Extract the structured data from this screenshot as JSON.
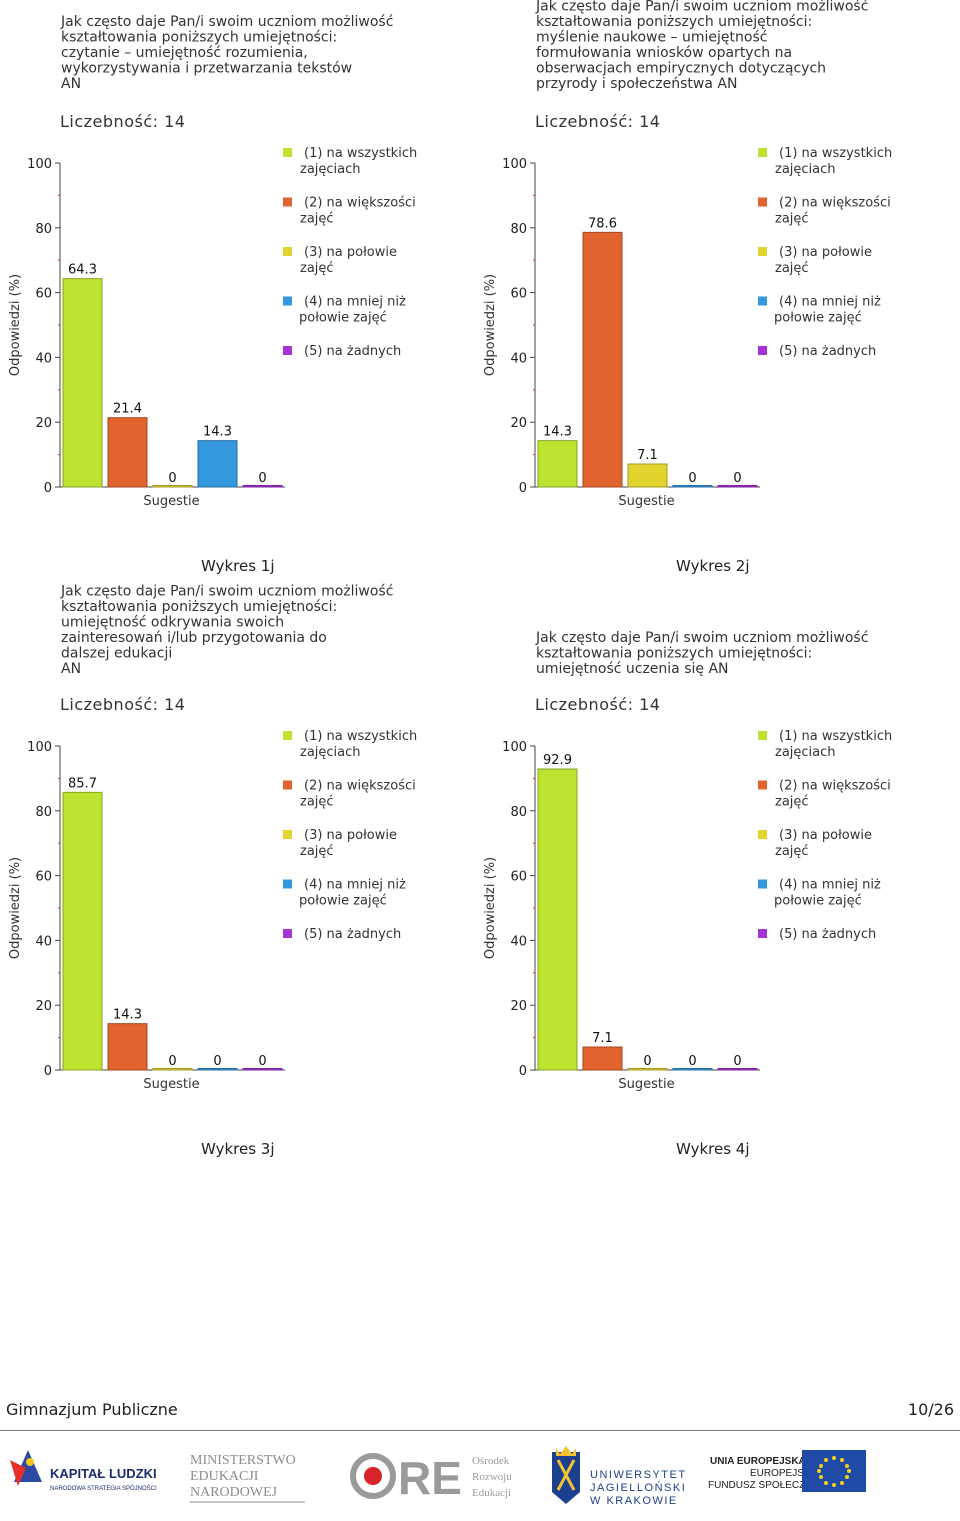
{
  "legend": [
    {
      "lines": [
        "(1) na wszystkich",
        "zajęciach"
      ],
      "color": "#bde22f"
    },
    {
      "lines": [
        "(2) na większości",
        "zajęć"
      ],
      "color": "#e2632e"
    },
    {
      "lines": [
        "(3) na połowie",
        "zajęć"
      ],
      "color": "#e3d32f"
    },
    {
      "lines": [
        "(4) na mniej niż",
        "połowie zajęć"
      ],
      "color": "#3498de"
    },
    {
      "lines": [
        "(5) na żadnych"
      ],
      "color": "#a434d8"
    }
  ],
  "chart_data": [
    {
      "type": "bar",
      "title_lines": [
        "Jak często daje Pan/i swoim uczniom możliwość",
        "kształtowania poniższych umiejętności:",
        "czytanie – umiejętność rozumienia,",
        "wykorzystywania i przetwarzania tekstów",
        "AN"
      ],
      "count_label": "Liczebność: 14",
      "categories": [
        "(1) na wszystkich zajęciach",
        "(2) na większości zajęć",
        "(3) na połowie zajęć",
        "(4) na mniej niż połowie zajęć",
        "(5) na żadnych"
      ],
      "values": [
        64.3,
        21.4,
        0,
        14.3,
        0
      ],
      "value_labels": [
        "64.3",
        "21.4",
        "0",
        "14.3",
        "0"
      ],
      "xlabel": "Sugestie",
      "ylabel": "Odpowiedzi (%)",
      "ylim": [
        0,
        100
      ],
      "yticks": [
        0,
        20,
        40,
        60,
        80,
        100
      ],
      "caption": "Wykres 1j"
    },
    {
      "type": "bar",
      "title_lines": [
        "Jak często daje Pan/i swoim uczniom możliwość",
        "kształtowania poniższych umiejętności:",
        "myślenie naukowe – umiejętność",
        "formułowania wniosków opartych na",
        "obserwacjach empirycznych dotyczących",
        "przyrody i społeczeństwa AN"
      ],
      "count_label": "Liczebność: 14",
      "categories": [
        "(1) na wszystkich zajęciach",
        "(2) na większości zajęć",
        "(3) na połowie zajęć",
        "(4) na mniej niż połowie zajęć",
        "(5) na żadnych"
      ],
      "values": [
        14.3,
        78.6,
        7.1,
        0,
        0
      ],
      "value_labels": [
        "14.3",
        "78.6",
        "7.1",
        "0",
        "0"
      ],
      "xlabel": "Sugestie",
      "ylabel": "Odpowiedzi (%)",
      "ylim": [
        0,
        100
      ],
      "yticks": [
        0,
        20,
        40,
        60,
        80,
        100
      ],
      "caption": "Wykres 2j"
    },
    {
      "type": "bar",
      "title_lines": [
        "Jak często daje Pan/i swoim uczniom możliwość",
        "kształtowania poniższych umiejętności:",
        "umiejętność odkrywania swoich",
        "zainteresowań i/lub przygotowania do",
        "dalszej edukacji",
        " AN"
      ],
      "count_label": "Liczebność: 14",
      "categories": [
        "(1) na wszystkich zajęciach",
        "(2) na większości zajęć",
        "(3) na połowie zajęć",
        "(4) na mniej niż połowie zajęć",
        "(5) na żadnych"
      ],
      "values": [
        85.7,
        14.3,
        0,
        0,
        0
      ],
      "value_labels": [
        "85.7",
        "14.3",
        "0",
        "0",
        "0"
      ],
      "xlabel": "Sugestie",
      "ylabel": "Odpowiedzi (%)",
      "ylim": [
        0,
        100
      ],
      "yticks": [
        0,
        20,
        40,
        60,
        80,
        100
      ],
      "caption": "Wykres 3j"
    },
    {
      "type": "bar",
      "title_lines": [
        "Jak często daje Pan/i swoim uczniom możliwość",
        "kształtowania poniższych umiejętności:",
        "umiejętność uczenia się AN"
      ],
      "count_label": "Liczebność: 14",
      "categories": [
        "(1) na wszystkich zajęciach",
        "(2) na większości zajęć",
        "(3) na połowie zajęć",
        "(4) na mniej niż połowie zajęć",
        "(5) na żadnych"
      ],
      "values": [
        92.9,
        7.1,
        0,
        0,
        0
      ],
      "value_labels": [
        "92.9",
        "7.1",
        "0",
        "0",
        "0"
      ],
      "xlabel": "Sugestie",
      "ylabel": "Odpowiedzi (%)",
      "ylim": [
        0,
        100
      ],
      "yticks": [
        0,
        20,
        40,
        60,
        80,
        100
      ],
      "caption": "Wykres 4j"
    }
  ],
  "footer": {
    "left": "Gimnazjum Publiczne",
    "right": "10/26"
  },
  "logos": {
    "kapital": "KAPITAŁ LUDZKI",
    "kapital_sub": "NARODOWA STRATEGIA SPÓJNOŚCI",
    "men": [
      "MINISTERSTWO",
      "EDUKACJI",
      "NARODOWEJ"
    ],
    "ore": "ORE",
    "ore_sub": [
      "Ośrodek",
      "Rozwoju",
      "Edukacji"
    ],
    "uj": [
      "UNIWERSYTET",
      "JAGIELLOŃSKI",
      "W KRAKOWIE"
    ],
    "ue": [
      "UNIA EUROPEJSKA",
      "EUROPEJSKI",
      "FUNDUSZ SPOŁECZNY"
    ]
  }
}
